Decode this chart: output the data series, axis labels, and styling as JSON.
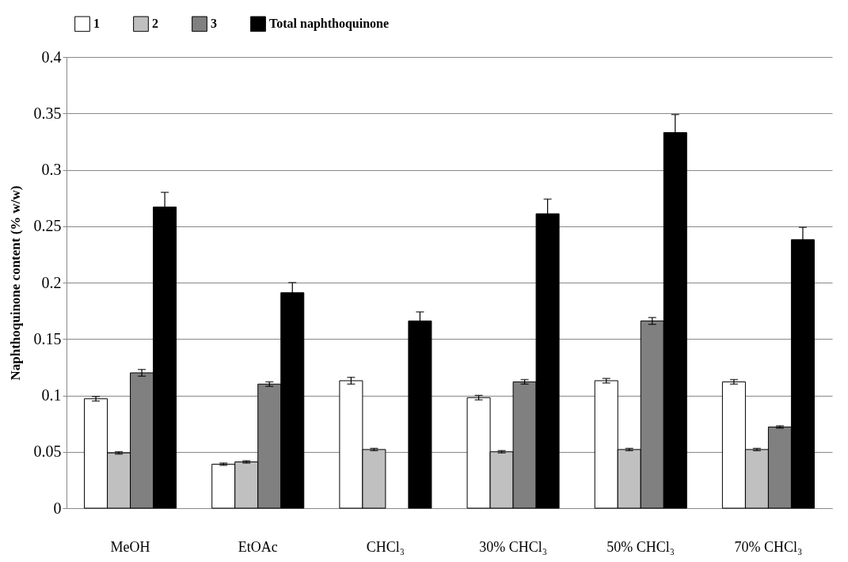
{
  "chart_data": {
    "type": "bar",
    "ylabel": "Naphthoquinone content (% w/w)",
    "categories": [
      "MeOH",
      "EtOAc",
      "CHCl₃",
      "30% CHCl₃",
      "50% CHCl₃",
      "70% CHCl₃"
    ],
    "series": [
      {
        "name": "1",
        "color": "#ffffff",
        "values": [
          0.097,
          0.039,
          0.113,
          0.098,
          0.113,
          0.112
        ],
        "errors": [
          0.002,
          0.001,
          0.003,
          0.002,
          0.002,
          0.002
        ]
      },
      {
        "name": "2",
        "color": "#c0c0c0",
        "values": [
          0.049,
          0.041,
          0.052,
          0.05,
          0.052,
          0.052
        ],
        "errors": [
          0.001,
          0.001,
          0.001,
          0.001,
          0.001,
          0.001
        ]
      },
      {
        "name": "3",
        "color": "#808080",
        "values": [
          0.12,
          0.11,
          0,
          0.112,
          0.166,
          0.072
        ],
        "errors": [
          0.003,
          0.002,
          null,
          0.002,
          0.003,
          0.001
        ]
      },
      {
        "name": "Total naphthoquinone",
        "color": "#000000",
        "values": [
          0.267,
          0.191,
          0.166,
          0.261,
          0.333,
          0.238
        ],
        "errors": [
          0.013,
          0.009,
          0.008,
          0.013,
          0.016,
          0.011
        ]
      }
    ],
    "ylim": [
      0,
      0.4
    ],
    "yticks": [
      0,
      0.05,
      0.1,
      0.15,
      0.2,
      0.25,
      0.3,
      0.35,
      0.4
    ],
    "grid": "y",
    "legend": "top"
  }
}
